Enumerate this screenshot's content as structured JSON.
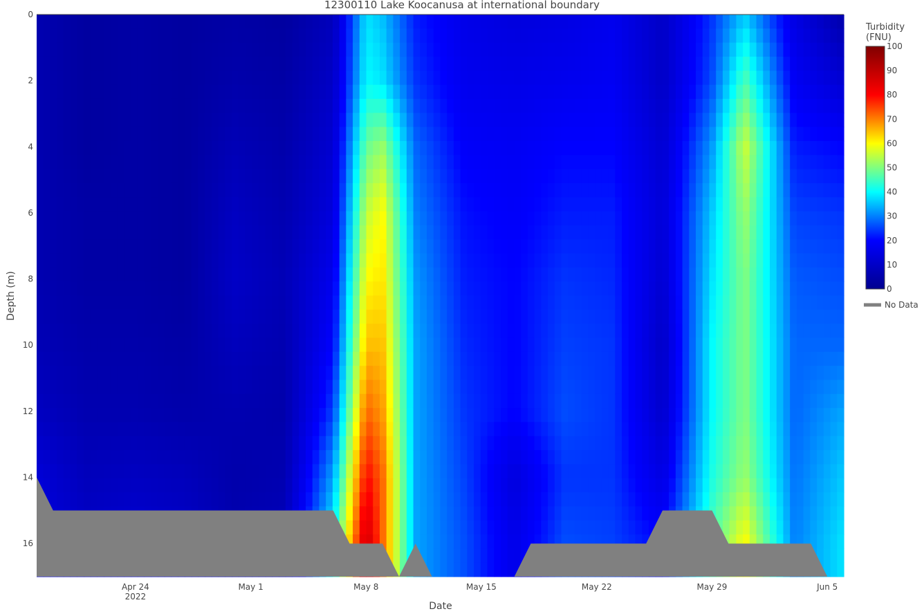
{
  "chart_data": {
    "type": "heatmap",
    "subtype": "contour",
    "title": "12300110 Lake Koocanusa at international boundary",
    "xlabel": "Date",
    "ylabel": "Depth (m)",
    "x_range": [
      "2022-04-18",
      "2022-06-06"
    ],
    "y_range": [
      0,
      17
    ],
    "y_reversed": true,
    "x_ticks": [
      {
        "date": "2022-04-24",
        "label": "Apr 24",
        "sublabel": "2022"
      },
      {
        "date": "2022-05-01",
        "label": "May 1",
        "sublabel": ""
      },
      {
        "date": "2022-05-08",
        "label": "May 8",
        "sublabel": ""
      },
      {
        "date": "2022-05-15",
        "label": "May 15",
        "sublabel": ""
      },
      {
        "date": "2022-05-22",
        "label": "May 22",
        "sublabel": ""
      },
      {
        "date": "2022-05-29",
        "label": "May 29",
        "sublabel": ""
      },
      {
        "date": "2022-06-05",
        "label": "Jun 5",
        "sublabel": ""
      }
    ],
    "y_ticks": [
      {
        "value": 0,
        "label": "0"
      },
      {
        "value": 2,
        "label": "2"
      },
      {
        "value": 4,
        "label": "4"
      },
      {
        "value": 6,
        "label": "6"
      },
      {
        "value": 8,
        "label": "8"
      },
      {
        "value": 10,
        "label": "10"
      },
      {
        "value": 12,
        "label": "12"
      },
      {
        "value": 14,
        "label": "14"
      },
      {
        "value": 16,
        "label": "16"
      }
    ],
    "colorbar": {
      "title_line1": "Turbidity",
      "title_line2": "(FNU)",
      "min": 0,
      "max": 100,
      "ticks": [
        {
          "value": 0,
          "label": "0"
        },
        {
          "value": 10,
          "label": "10"
        },
        {
          "value": 20,
          "label": "20"
        },
        {
          "value": 30,
          "label": "30"
        },
        {
          "value": 40,
          "label": "40"
        },
        {
          "value": 50,
          "label": "50"
        },
        {
          "value": 60,
          "label": "60"
        },
        {
          "value": 70,
          "label": "70"
        },
        {
          "value": 80,
          "label": "80"
        },
        {
          "value": 90,
          "label": "90"
        },
        {
          "value": 100,
          "label": "100"
        }
      ],
      "colorscale": [
        "#00008f",
        "#0000ff",
        "#00ffff",
        "#ffff00",
        "#ff0000",
        "#800000"
      ]
    },
    "legend": {
      "label": "No Data",
      "color": "#808080",
      "placement": "right"
    },
    "depths": [
      0,
      2,
      4,
      6,
      8,
      10,
      12,
      14,
      16,
      17
    ],
    "profiles": [
      {
        "date": "2022-04-18",
        "turbidity": [
          6,
          6,
          6,
          6,
          6,
          7,
          9,
          13,
          14,
          14
        ]
      },
      {
        "date": "2022-04-21",
        "turbidity": [
          3,
          3,
          3,
          4,
          4,
          5,
          6,
          8,
          10,
          10
        ]
      },
      {
        "date": "2022-04-24",
        "turbidity": [
          4,
          4,
          4,
          4,
          4,
          5,
          6,
          9,
          12,
          12
        ]
      },
      {
        "date": "2022-04-27",
        "turbidity": [
          3,
          3,
          3,
          3,
          3,
          4,
          5,
          8,
          10,
          10
        ]
      },
      {
        "date": "2022-04-30",
        "turbidity": [
          4,
          5,
          7,
          9,
          10,
          8,
          6,
          5,
          6,
          6
        ]
      },
      {
        "date": "2022-05-03",
        "turbidity": [
          3,
          4,
          5,
          6,
          7,
          6,
          5,
          6,
          8,
          8
        ]
      },
      {
        "date": "2022-05-06",
        "turbidity": [
          8,
          10,
          12,
          14,
          17,
          20,
          25,
          33,
          40,
          40
        ]
      },
      {
        "date": "2022-05-08",
        "turbidity": [
          38,
          40,
          48,
          55,
          60,
          65,
          72,
          80,
          88,
          88
        ]
      },
      {
        "date": "2022-05-09",
        "turbidity": [
          35,
          38,
          52,
          60,
          62,
          65,
          68,
          72,
          72,
          72
        ]
      },
      {
        "date": "2022-05-11",
        "turbidity": [
          22,
          24,
          28,
          30,
          32,
          33,
          33,
          33,
          33,
          33
        ]
      },
      {
        "date": "2022-05-14",
        "turbidity": [
          16,
          17,
          19,
          21,
          22,
          23,
          24,
          25,
          26,
          26
        ]
      },
      {
        "date": "2022-05-17",
        "turbidity": [
          14,
          16,
          18,
          19,
          20,
          20,
          20,
          14,
          16,
          16
        ]
      },
      {
        "date": "2022-05-20",
        "turbidity": [
          15,
          17,
          20,
          22,
          24,
          25,
          26,
          24,
          26,
          26
        ]
      },
      {
        "date": "2022-05-23",
        "turbidity": [
          17,
          18,
          20,
          22,
          23,
          24,
          24,
          24,
          25,
          25
        ]
      },
      {
        "date": "2022-05-26",
        "turbidity": [
          10,
          10,
          12,
          13,
          12,
          10,
          11,
          15,
          20,
          20
        ]
      },
      {
        "date": "2022-05-29",
        "turbidity": [
          24,
          26,
          32,
          36,
          38,
          40,
          40,
          42,
          46,
          46
        ]
      },
      {
        "date": "2022-05-31",
        "turbidity": [
          36,
          46,
          56,
          52,
          50,
          50,
          50,
          52,
          60,
          60
        ]
      },
      {
        "date": "2022-06-03",
        "turbidity": [
          15,
          18,
          22,
          25,
          27,
          28,
          28,
          29,
          30,
          30
        ]
      },
      {
        "date": "2022-06-06",
        "turbidity": [
          5,
          12,
          20,
          24,
          26,
          28,
          33,
          36,
          38,
          38
        ]
      }
    ],
    "no_data_boundary": [
      {
        "date": "2022-04-18",
        "depth": 14
      },
      {
        "date": "2022-04-19",
        "depth": 15
      },
      {
        "date": "2022-05-06",
        "depth": 15
      },
      {
        "date": "2022-05-07",
        "depth": 16
      },
      {
        "date": "2022-05-09",
        "depth": 16
      },
      {
        "date": "2022-05-10",
        "depth": 17
      },
      {
        "date": "2022-05-11",
        "depth": 16
      },
      {
        "date": "2022-05-12",
        "depth": 17
      },
      {
        "date": "2022-05-17",
        "depth": 17
      },
      {
        "date": "2022-05-18",
        "depth": 16
      },
      {
        "date": "2022-05-25",
        "depth": 16
      },
      {
        "date": "2022-05-26",
        "depth": 15
      },
      {
        "date": "2022-05-29",
        "depth": 15
      },
      {
        "date": "2022-05-30",
        "depth": 16
      },
      {
        "date": "2022-06-04",
        "depth": 16
      },
      {
        "date": "2022-06-05",
        "depth": 17
      }
    ]
  }
}
